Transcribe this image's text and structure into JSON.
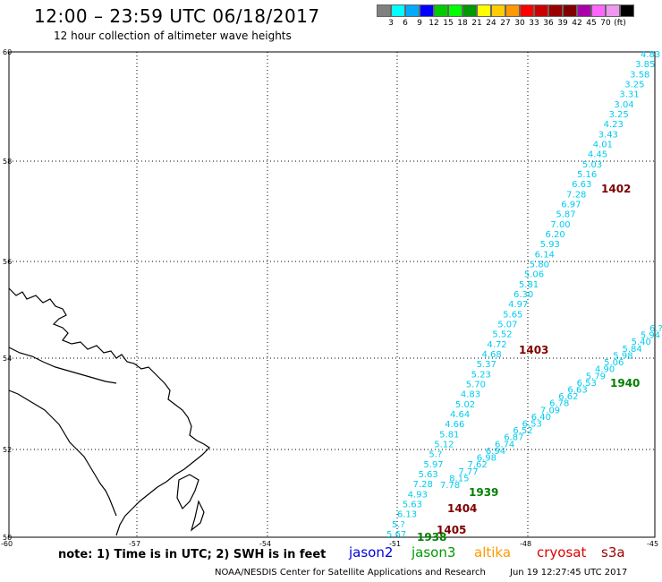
{
  "header": {
    "title": "12:00 – 23:59 UTC 06/18/2017",
    "subtitle": "12 hour collection of altimeter wave heights"
  },
  "legend": {
    "colors": [
      "#808080",
      "#00ffff",
      "#00aaff",
      "#0000ff",
      "#00cc00",
      "#00ff00",
      "#009900",
      "#ffff00",
      "#ffcc00",
      "#ff9900",
      "#ff0000",
      "#cc0000",
      "#990000",
      "#800000",
      "#aa00aa",
      "#ff66ff",
      "#ee99ee",
      "#000000"
    ],
    "labels": [
      "3",
      "6",
      "9",
      "12",
      "15",
      "18",
      "21",
      "24",
      "27",
      "30",
      "33",
      "36",
      "39",
      "42",
      "45",
      "70"
    ],
    "unit": "(ft)"
  },
  "axes": {
    "lat_labels": [
      "60",
      "58",
      "56",
      "54",
      "52",
      "50"
    ],
    "lon_labels": [
      "-60",
      "-57",
      "-54",
      "-51",
      "-48",
      "-45"
    ]
  },
  "tracks": {
    "color": "#00ccee",
    "track_a_values": [
      "5.67",
      "5.?",
      "6.13",
      "5.63",
      "4.93",
      "7.28",
      "5.63",
      "5.97",
      "5.?",
      "5.12",
      "5.81",
      "4.66",
      "4.64",
      "5.02",
      "4.83",
      "5.70",
      "5.23",
      "5.37",
      "4.68",
      "4.72",
      "5.52",
      "5.07",
      "5.65",
      "4.97",
      "6.30",
      "5.81",
      "5.06",
      "5.80",
      "6.14",
      "5.93",
      "6.20",
      "7.00",
      "5.87",
      "6.97",
      "7.28",
      "6.63",
      "5.16",
      "5.03",
      "4.45",
      "4.01",
      "3.43",
      "4.23",
      "3.25",
      "3.04",
      "3.31",
      "3.25",
      "3.58",
      "3.85",
      "4.83"
    ],
    "track_b_values": [
      "7.78",
      "8.15",
      "7.77",
      "7.62",
      "6.98",
      "6.94",
      "6.74",
      "6.87",
      "6.52",
      "6.53",
      "6.40",
      "7.09",
      "6.78",
      "6.62",
      "6.63",
      "6.53",
      "5.79",
      "4.90",
      "5.06",
      "5.98",
      "5.84",
      "5.40",
      "5.94",
      "6.?"
    ]
  },
  "pass_labels": [
    {
      "text": "1402",
      "color": "#800000"
    },
    {
      "text": "1403",
      "color": "#800000"
    },
    {
      "text": "1404",
      "color": "#800000"
    },
    {
      "text": "1405",
      "color": "#800000"
    },
    {
      "text": "1939",
      "color": "#008000"
    },
    {
      "text": "1940",
      "color": "#008000"
    },
    {
      "text": "1938",
      "color": "#008000"
    }
  ],
  "footer": {
    "note": "note: 1) Time is in UTC; 2) SWH is in feet",
    "satellites": [
      {
        "text": "jason2",
        "color": "#0000dd"
      },
      {
        "text": "jason3",
        "color": "#009900"
      },
      {
        "text": "altika",
        "color": "#ff9900"
      },
      {
        "text": "cryosat",
        "color": "#dd0000"
      },
      {
        "text": "s3a",
        "color": "#990000"
      }
    ],
    "credit": "NOAA/NESDIS Center for Satellite Applications and Research",
    "timestamp": "Jun 19 12:27:45 UTC 2017"
  }
}
